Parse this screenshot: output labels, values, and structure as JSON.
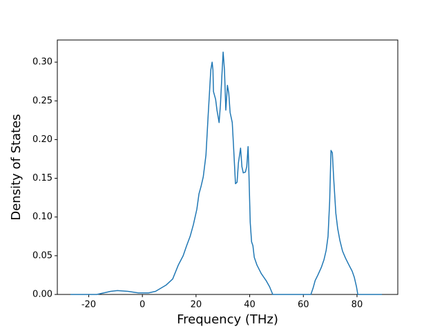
{
  "chart_data": {
    "type": "line",
    "xlabel": "Frequency (THz)",
    "ylabel": "Density of States",
    "x": [
      -26.8,
      -17,
      -11.8,
      -9.3,
      -5.4,
      -1.5,
      2.3,
      4.9,
      8.8,
      11.3,
      13.4,
      15.2,
      16.5,
      17.8,
      19.0,
      20.3,
      21.1,
      21.9,
      22.7,
      23.7,
      24.5,
      25.0,
      25.5,
      26.0,
      26.3,
      26.5,
      27.3,
      27.8,
      28.6,
      29.1,
      29.6,
      30.1,
      30.6,
      31.1,
      31.7,
      32.2,
      32.7,
      33.5,
      34.0,
      34.7,
      35.3,
      35.8,
      36.6,
      37.1,
      37.6,
      38.4,
      38.9,
      39.4,
      39.6,
      40.2,
      40.7,
      41.2,
      41.7,
      42.7,
      44.3,
      46.1,
      47.4,
      48.6,
      49.9,
      62.8,
      63.6,
      64.4,
      65.4,
      66.7,
      67.7,
      68.5,
      69.2,
      69.8,
      70.3,
      70.8,
      71.3,
      72.1,
      72.8,
      73.6,
      74.6,
      75.7,
      77.0,
      78.2,
      79.0,
      79.8,
      80.3,
      83.4,
      89.3
    ],
    "series": [
      {
        "color": "#1f77b4",
        "values": [
          0,
          0,
          0.004,
          0.005,
          0.004,
          0.002,
          0.002,
          0.004,
          0.012,
          0.02,
          0.038,
          0.05,
          0.063,
          0.075,
          0.09,
          0.11,
          0.13,
          0.14,
          0.152,
          0.18,
          0.23,
          0.26,
          0.29,
          0.3,
          0.29,
          0.262,
          0.252,
          0.238,
          0.222,
          0.245,
          0.28,
          0.313,
          0.29,
          0.238,
          0.27,
          0.26,
          0.235,
          0.222,
          0.19,
          0.143,
          0.145,
          0.17,
          0.189,
          0.165,
          0.157,
          0.158,
          0.165,
          0.191,
          0.17,
          0.093,
          0.068,
          0.063,
          0.048,
          0.038,
          0.027,
          0.018,
          0.01,
          0,
          0,
          0,
          0.008,
          0.018,
          0.025,
          0.035,
          0.045,
          0.057,
          0.075,
          0.12,
          0.186,
          0.183,
          0.15,
          0.105,
          0.085,
          0.07,
          0.056,
          0.047,
          0.038,
          0.03,
          0.022,
          0.01,
          0,
          0,
          0
        ]
      }
    ],
    "xlim": [
      -31.7,
      95.2
    ],
    "xticks": [
      -20,
      0,
      20,
      40,
      60,
      80
    ],
    "ylim": [
      0,
      0.3286
    ],
    "yticks": [
      {
        "value": 0,
        "label": "0.00"
      },
      {
        "value": 0.05,
        "label": "0.05"
      },
      {
        "value": 0.1,
        "label": "0.10"
      },
      {
        "value": 0.15,
        "label": "0.15"
      },
      {
        "value": 0.2,
        "label": "0.20"
      },
      {
        "value": 0.25,
        "label": "0.25"
      },
      {
        "value": 0.3,
        "label": "0.30"
      }
    ]
  }
}
